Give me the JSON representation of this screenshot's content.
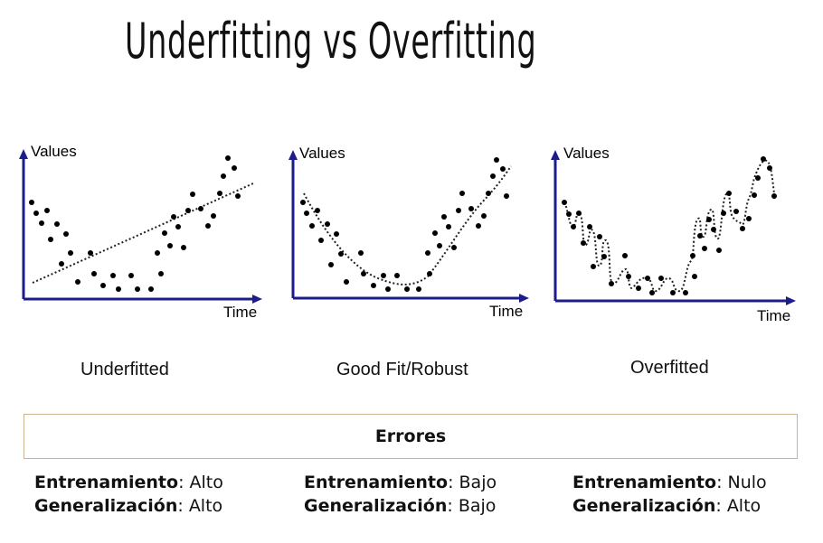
{
  "title": "Underfitting vs Overfitting",
  "panels": [
    {
      "axis_y": "Values",
      "axis_x": "Time",
      "caption": "Underfitted"
    },
    {
      "axis_y": "Values",
      "axis_x": "Time",
      "caption": "Good Fit/Robust"
    },
    {
      "axis_y": "Values",
      "axis_x": "Time",
      "caption": "Overfitted"
    }
  ],
  "errors": {
    "header": "Errores",
    "columns": [
      {
        "train_label": "Entrenamiento",
        "train_value": "Alto",
        "gen_label": "Generalización",
        "gen_value": "Alto"
      },
      {
        "train_label": "Entrenamiento",
        "train_value": "Bajo",
        "gen_label": "Generalización",
        "gen_value": "Bajo"
      },
      {
        "train_label": "Entrenamiento",
        "train_value": "Nulo",
        "gen_label": "Generalización",
        "gen_value": "Alto"
      }
    ]
  },
  "separator": ": "
}
